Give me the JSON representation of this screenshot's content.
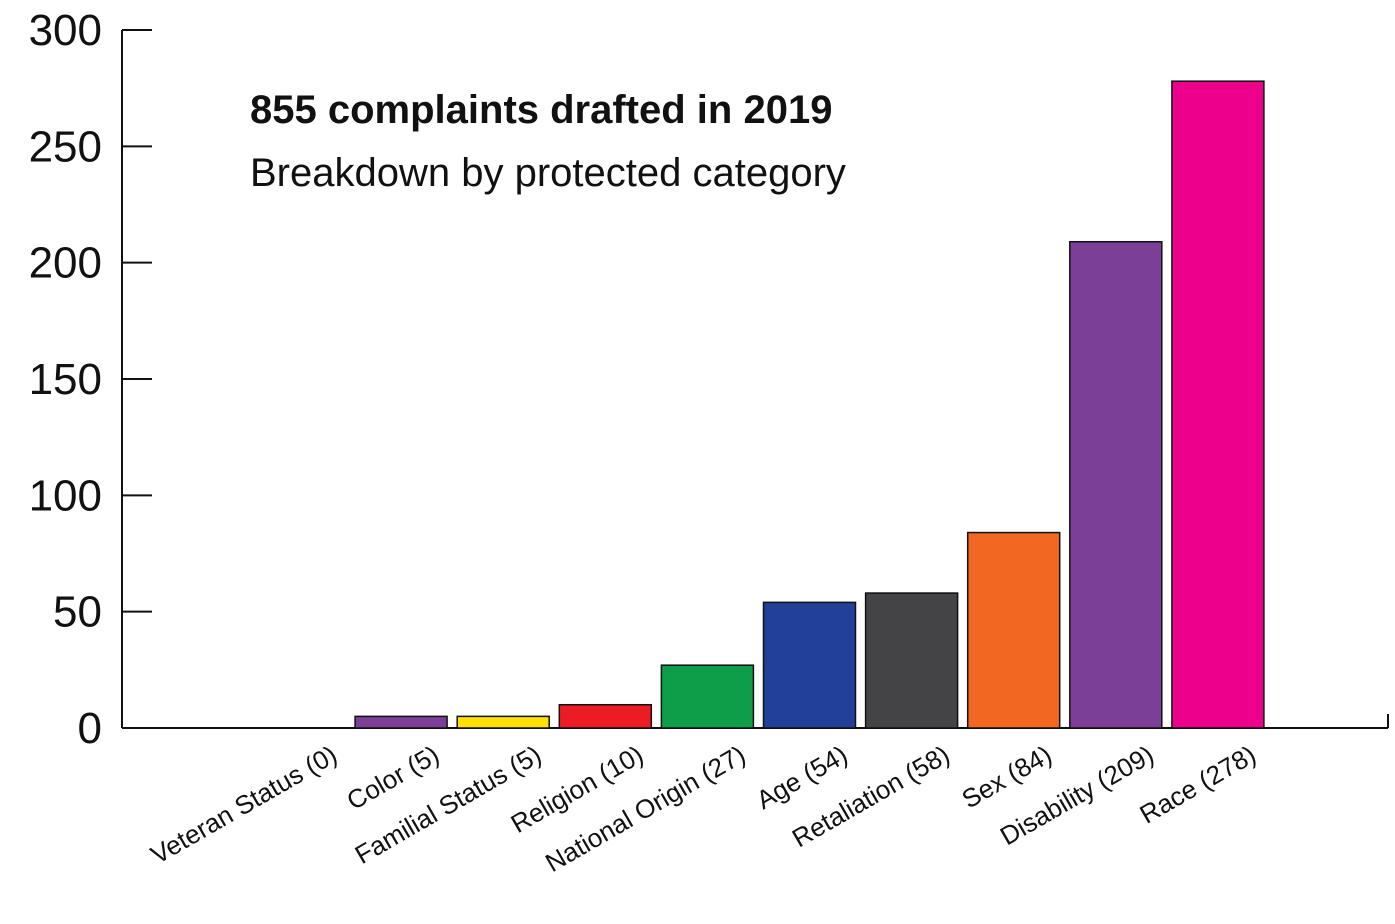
{
  "chart_data": {
    "type": "bar",
    "title": "855 complaints drafted in 2019",
    "subtitle": "Breakdown by protected category",
    "categories": [
      "Veteran Status (0)",
      "Color (5)",
      "Familial Status (5)",
      "Religion (10)",
      "National Origin (27)",
      "Age (54)",
      "Retaliation (58)",
      "Sex (84)",
      "Disability (209)",
      "Race (278)"
    ],
    "values": [
      0,
      5,
      5,
      10,
      27,
      54,
      58,
      84,
      209,
      278
    ],
    "colors": [
      "#ffffff",
      "#7b3f98",
      "#ffe000",
      "#ec1c24",
      "#0e9d48",
      "#22409a",
      "#444446",
      "#f26722",
      "#7b3f98",
      "#ec008c"
    ],
    "ylim": [
      0,
      300
    ],
    "yticks": [
      0,
      50,
      100,
      150,
      200,
      250,
      300
    ],
    "xlabel": "",
    "ylabel": "",
    "grid": false,
    "legend": "none"
  }
}
